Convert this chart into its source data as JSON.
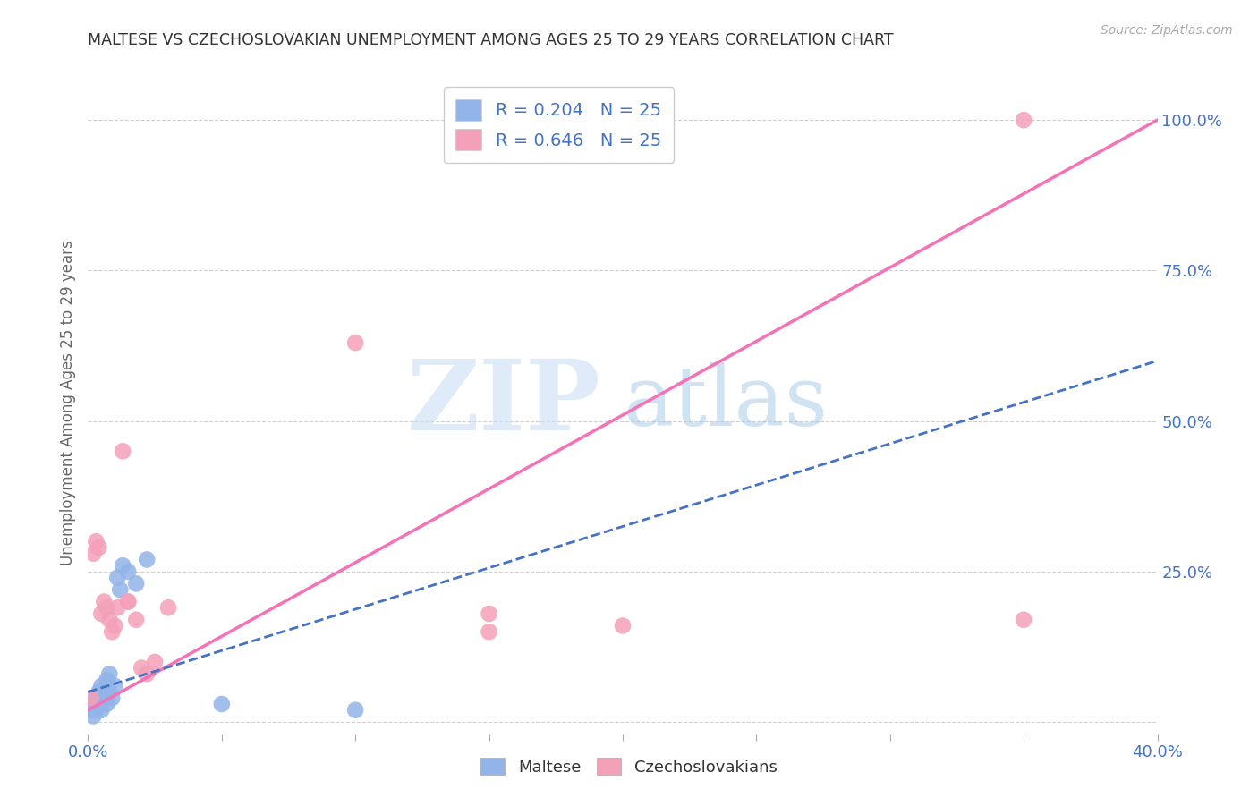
{
  "title": "MALTESE VS CZECHOSLOVAKIAN UNEMPLOYMENT AMONG AGES 25 TO 29 YEARS CORRELATION CHART",
  "source": "Source: ZipAtlas.com",
  "ylabel": "Unemployment Among Ages 25 to 29 years",
  "xlim": [
    0.0,
    0.4
  ],
  "ylim": [
    -0.02,
    1.08
  ],
  "xticks": [
    0.0,
    0.05,
    0.1,
    0.15,
    0.2,
    0.25,
    0.3,
    0.35,
    0.4
  ],
  "xticklabels": [
    "0.0%",
    "",
    "",
    "",
    "",
    "",
    "",
    "",
    "40.0%"
  ],
  "yticks_right": [
    0.0,
    0.25,
    0.5,
    0.75,
    1.0
  ],
  "yticklabels_right": [
    "",
    "25.0%",
    "50.0%",
    "75.0%",
    "100.0%"
  ],
  "maltese_r": 0.204,
  "maltese_n": 25,
  "czech_r": 0.646,
  "czech_n": 25,
  "maltese_color": "#92b4e8",
  "czech_color": "#f4a0b8",
  "maltese_line_color": "#4472c4",
  "czech_line_color": "#f472b6",
  "grid_color": "#d0d0d0",
  "background_color": "#ffffff",
  "title_color": "#333333",
  "axis_color": "#4472c4",
  "maltese_x": [
    0.001,
    0.002,
    0.002,
    0.003,
    0.003,
    0.004,
    0.004,
    0.005,
    0.005,
    0.006,
    0.006,
    0.007,
    0.007,
    0.008,
    0.008,
    0.009,
    0.01,
    0.011,
    0.012,
    0.013,
    0.015,
    0.018,
    0.022,
    0.05,
    0.1
  ],
  "maltese_y": [
    0.02,
    0.01,
    0.03,
    0.02,
    0.04,
    0.03,
    0.05,
    0.02,
    0.06,
    0.04,
    0.05,
    0.03,
    0.07,
    0.05,
    0.08,
    0.04,
    0.06,
    0.24,
    0.22,
    0.26,
    0.25,
    0.23,
    0.27,
    0.03,
    0.02
  ],
  "czech_x": [
    0.001,
    0.002,
    0.003,
    0.004,
    0.005,
    0.006,
    0.007,
    0.008,
    0.009,
    0.01,
    0.011,
    0.013,
    0.015,
    0.018,
    0.02,
    0.022,
    0.025,
    0.03,
    0.1,
    0.15,
    0.015,
    0.15,
    0.2,
    0.35,
    0.35
  ],
  "czech_y": [
    0.04,
    0.28,
    0.3,
    0.29,
    0.18,
    0.2,
    0.19,
    0.17,
    0.15,
    0.16,
    0.19,
    0.45,
    0.2,
    0.17,
    0.09,
    0.08,
    0.1,
    0.19,
    0.63,
    0.18,
    0.2,
    0.15,
    0.16,
    0.17,
    1.0
  ],
  "czech_line_x0": 0.0,
  "czech_line_y0": 0.02,
  "czech_line_x1": 0.4,
  "czech_line_y1": 1.0,
  "maltese_line_x0": 0.0,
  "maltese_line_y0": 0.05,
  "maltese_line_x1": 0.4,
  "maltese_line_y1": 0.6
}
